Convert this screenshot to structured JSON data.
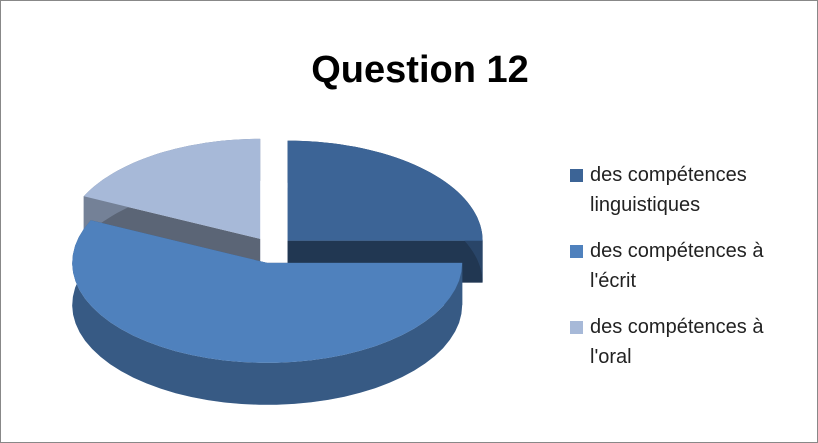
{
  "chart_data": {
    "type": "pie",
    "title": "Question 12",
    "categories": [
      "des compétences linguistiques",
      "des compétences à l'écrit",
      "des compétences à l'oral"
    ],
    "values": [
      25,
      57,
      18
    ],
    "colors": [
      "#3c6496",
      "#4f81bd",
      "#a7b9d8"
    ],
    "legend": "right"
  }
}
